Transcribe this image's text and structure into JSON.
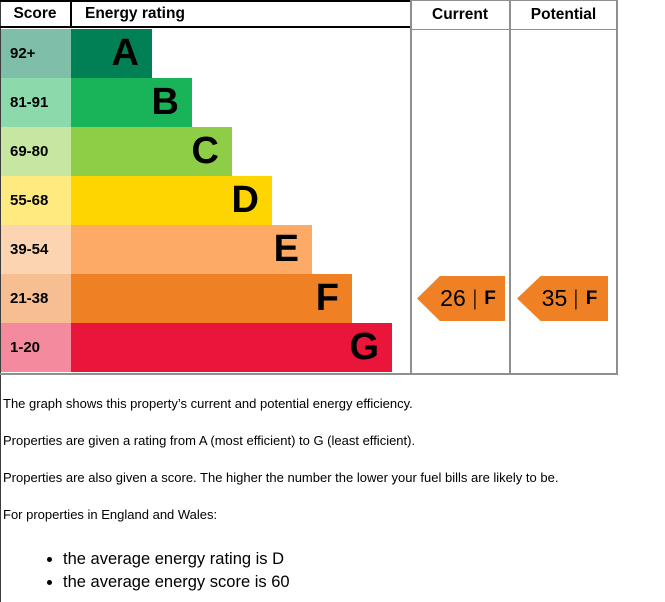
{
  "header": {
    "score": "Score",
    "rating": "Energy rating",
    "current": "Current",
    "potential": "Potential"
  },
  "chart_data": {
    "type": "bar",
    "title": "Energy efficiency rating chart (EPC)",
    "bands": "A (most efficient, score 92+) to G (least efficient, score 1-20)",
    "rows": [
      {
        "score": "92+",
        "letter": "A",
        "band_color": "#008054",
        "score_color": "#7fbfa9",
        "band_width": 81
      },
      {
        "score": "81-91",
        "letter": "B",
        "band_color": "#19b459",
        "score_color": "#8cd9ac",
        "band_width": 121
      },
      {
        "score": "69-80",
        "letter": "C",
        "band_color": "#8dce46",
        "score_color": "#c6e6a2",
        "band_width": 161
      },
      {
        "score": "55-68",
        "letter": "D",
        "band_color": "#ffd500",
        "score_color": "#ffea80",
        "band_width": 201
      },
      {
        "score": "39-54",
        "letter": "E",
        "band_color": "#fcaa65",
        "score_color": "#fdd4b2",
        "band_width": 241
      },
      {
        "score": "21-38",
        "letter": "F",
        "band_color": "#ef8023",
        "score_color": "#f7bf91",
        "band_width": 281
      },
      {
        "score": "1-20",
        "letter": "G",
        "band_color": "#e9153b",
        "score_color": "#f48a9d",
        "band_width": 321
      }
    ],
    "current": {
      "value": "26",
      "letter": "F",
      "row_index": 5,
      "color": "#ef8023"
    },
    "potential": {
      "value": "35",
      "letter": "F",
      "row_index": 5,
      "color": "#ef8023"
    }
  },
  "notes": {
    "paragraphs": [
      "The graph shows this property’s current and potential energy efficiency.",
      "Properties are given a rating from A (most efficient) to G (least efficient).",
      "Properties are also given a score. The higher the number the lower your fuel bills are likely to be.",
      "For properties in England and Wales:"
    ],
    "bullets": [
      "the average energy rating is D",
      "the average energy score is 60"
    ]
  }
}
